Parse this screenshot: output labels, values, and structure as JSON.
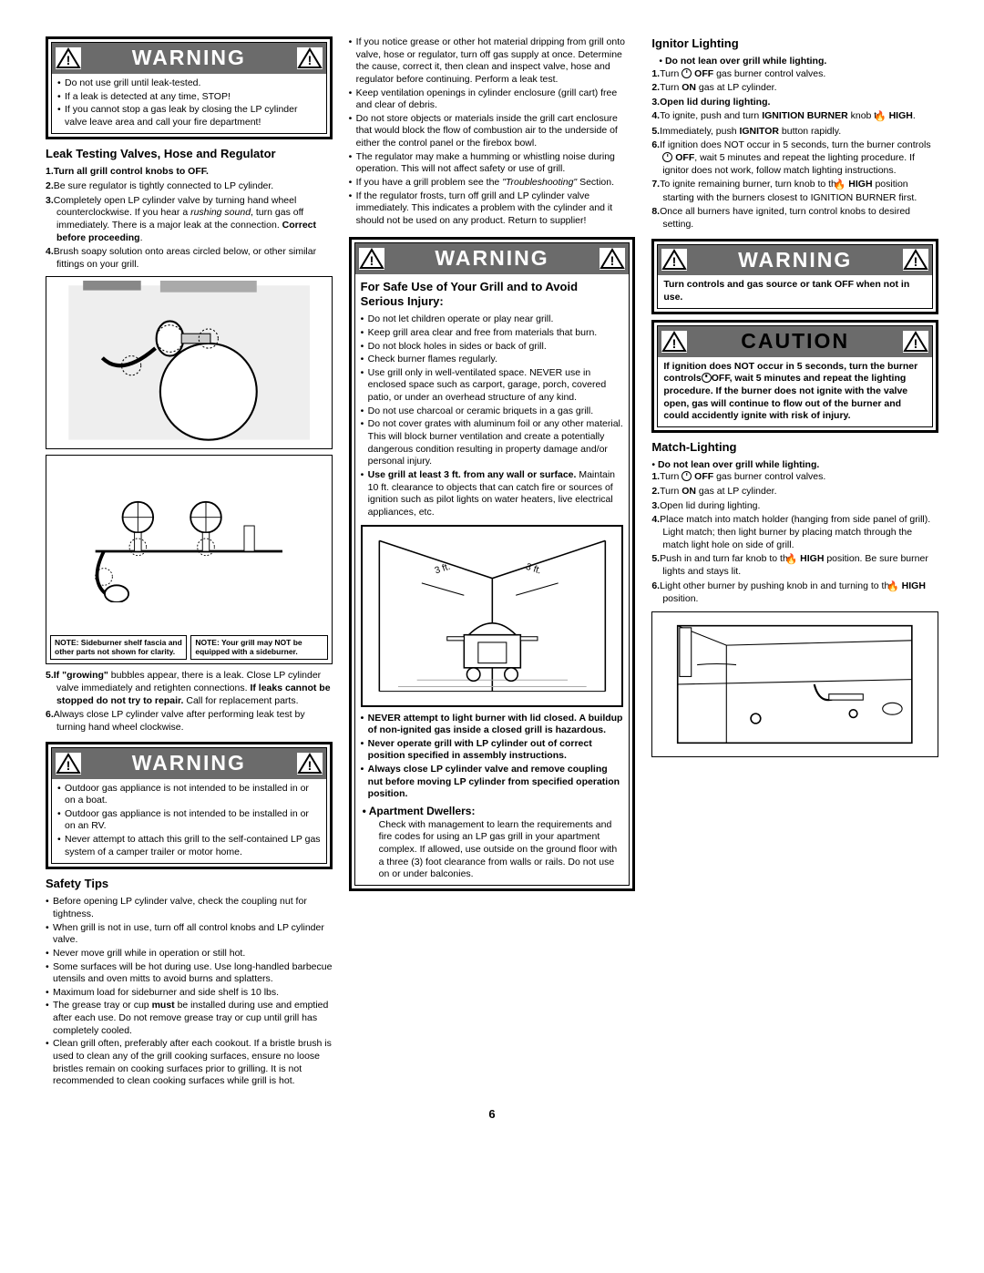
{
  "pageNumber": "6",
  "warningLabel": "WARNING",
  "cautionLabel": "CAUTION",
  "col1": {
    "warn1": {
      "items": [
        "Do not use grill until leak-tested.",
        "If a leak is detected at any time, STOP!",
        "If you cannot stop a gas leak by closing the LP cylinder valve leave area and call your fire department!"
      ]
    },
    "leakTitle": "Leak Testing Valves, Hose and Regulator",
    "leakSteps": [
      {
        "n": "1.",
        "t": "Turn all grill control knobs to OFF.",
        "bold": true
      },
      {
        "n": "2.",
        "t": "Be sure regulator is tightly connected to LP cylinder."
      },
      {
        "n": "3.",
        "t": "Completely open LP cylinder valve by turning hand wheel counterclockwise. If you hear a <i>rushing sound</i>, turn gas off immediately. There is a major leak at the connection. <b>Correct before proceeding</b>."
      },
      {
        "n": "4.",
        "t": "Brush soapy solution onto areas circled below, or other similar fittings on your grill."
      }
    ],
    "note1": "NOTE: Sideburner shelf fascia and other parts not shown for clarity.",
    "note2": "NOTE: Your grill may NOT be equipped with a sideburner.",
    "leakSteps2": [
      {
        "n": "5.",
        "t": "<b>If \"growing\"</b> bubbles appear, there is a leak. Close LP cylinder valve immediately and retighten connections. <b>If leaks cannot be stopped do not try to repair.</b> Call for replacement parts."
      },
      {
        "n": "6.",
        "t": "Always close LP cylinder valve after performing leak test by turning hand wheel clockwise."
      }
    ],
    "warn2": {
      "items": [
        "Outdoor gas appliance is not intended to be installed in or on a boat.",
        "Outdoor gas appliance is not intended to be installed in or on an RV.",
        "Never attempt to attach this grill to the self-contained LP gas system of a camper trailer or motor home."
      ]
    },
    "safetyTitle": "Safety Tips",
    "safetyItems": [
      "Before opening LP cylinder valve, check the coupling nut for tightness.",
      "When grill is not in use, turn off all control knobs and LP cylinder valve.",
      "Never move grill while in operation or still hot.",
      "Some surfaces will be hot during use.  Use long-handled barbecue utensils and oven mitts to avoid burns and splatters.",
      "Maximum load for sideburner and side shelf is 10 lbs.",
      "The grease tray or cup <b>must</b> be installed during use and emptied after each use. Do not remove grease tray or cup until grill has completely cooled.",
      "Clean grill often, preferably after each cookout. If a bristle brush is used to clean any of the grill cooking surfaces, ensure no loose bristles remain on cooking surfaces prior to grilling. It is not recommended to clean cooking surfaces while grill is hot."
    ]
  },
  "col2": {
    "topItems": [
      "If you notice grease or other hot material dripping from grill onto valve, hose or regulator, turn off gas supply at once. Determine the cause, correct it, then clean and inspect valve, hose and regulator before continuing. Perform a leak test.",
      "Keep ventilation openings in cylinder enclosure (grill cart) free and clear of debris.",
      "Do not store objects or materials inside the grill cart enclosure that would block the flow of combustion air to the underside of either the control panel or the firebox bowl.",
      "The regulator may make a humming or whistling noise during operation. This will not affect safety or use of grill.",
      "If you have a grill problem see the <i>\"Troubleshooting\"</i> Section.",
      "If the regulator frosts, turn off grill and LP cylinder valve immediately. This indicates a problem with the cylinder and it should not be used on any product. Return to supplier!"
    ],
    "safeUseTitle": "For Safe Use of Your Grill and to Avoid Serious Injury:",
    "safeItems": [
      "Do not let children operate or play near grill.",
      "Keep grill area clear and free from materials that burn.",
      "Do not block holes in sides or back of grill.",
      "Check burner flames regularly.",
      "Use grill only in well-ventilated space. NEVER use in enclosed space such as carport, garage, porch, covered patio, or under an overhead structure of any kind.",
      "Do not use charcoal or ceramic briquets in a gas grill.",
      "Do not cover grates with aluminum foil or any other material.  This will block burner ventilation and create a potentially dangerous condition resulting in  property damage and/or personal injury.",
      "<b>Use grill at least 3 ft. from any wall or surface.</b> Maintain 10 ft. clearance to objects that can catch fire or sources of ignition such as pilot lights on water heaters, live electrical appliances, etc."
    ],
    "boldItems": [
      "NEVER attempt to light burner with lid closed. A buildup of non-ignited gas inside a closed grill is hazardous.",
      "Never operate grill with LP cylinder out of correct position specified in assembly instructions.",
      "Always close LP cylinder valve and remove coupling nut before moving LP cylinder from specified operation position."
    ],
    "aptTitle": "Apartment Dwellers:",
    "aptText": "Check with management to learn the requirements and fire codes for using an LP gas grill in your apartment complex. If allowed, use outside on the ground floor with a three (3) foot clearance from walls or rails. Do not use on or under balconies."
  },
  "col3": {
    "ignitorTitle": "Ignitor Lighting",
    "ignitorLead": "Do not lean over grill while lighting.",
    "ignitorSteps": [
      {
        "n": "1.",
        "t": "Turn <span class='knob-circ'></span> <b>OFF</b> gas burner control valves."
      },
      {
        "n": "2.",
        "t": "Turn <b>ON</b> gas at LP cylinder."
      },
      {
        "n": "3.",
        "t": "<b>Open lid during lighting.</b>"
      },
      {
        "n": "4.",
        "t": "To ignite, push and turn <b>IGNITION BURNER</b> knob to <span class='flame'>🔥</span> <b>HIGH</b>."
      },
      {
        "n": "5.",
        "t": "Immediately, push <b>IGNITOR</b> button rapidly."
      },
      {
        "n": "6.",
        "t": "If ignition does NOT occur in 5 seconds, turn the burner controls<span class='knob-circ'></span> <b>OFF</b>, wait 5 minutes and repeat the lighting procedure. If ignitor does not work, follow match lighting instructions."
      },
      {
        "n": "7.",
        "t": "To ignite remaining burner, turn knob to the <span class='flame'>🔥</span> <b>HIGH</b> position starting with the burners closest to IGNITION BURNER first."
      },
      {
        "n": "8.",
        "t": "Once all burners have ignited, turn control knobs to desired setting."
      }
    ],
    "warn3": "Turn controls and gas source or tank OFF when not in use.",
    "caution": "If ignition does NOT occur in 5 seconds, turn the burner controls<span class='knob-circ'></span>OFF, wait 5 minutes and repeat the lighting procedure. If the burner does not ignite with the valve open, gas will continue to flow out of the burner and could accidently ignite with risk of injury.",
    "matchTitle": "Match-Lighting",
    "matchLead": "Do not lean over grill while lighting.",
    "matchSteps": [
      {
        "n": "1.",
        "t": "Turn <span class='knob-circ'></span> <b>OFF</b> gas burner control valves."
      },
      {
        "n": "2.",
        "t": "Turn <b>ON</b> gas at LP cylinder."
      },
      {
        "n": "3.",
        "t": "Open lid during lighting."
      },
      {
        "n": "4.",
        "t": "Place match into match holder (hanging from side panel of grill). Light match; then light burner by placing match through the match light hole on side of grill."
      },
      {
        "n": "5.",
        "t": "Push in and turn far knob to the <span class='flame'>🔥</span> <b>HIGH</b> position.  Be sure burner lights and stays lit."
      },
      {
        "n": "6.",
        "t": "Light other burner by pushing knob in and turning to the <span class='flame'>🔥</span> <b>HIGH</b> position."
      }
    ]
  }
}
